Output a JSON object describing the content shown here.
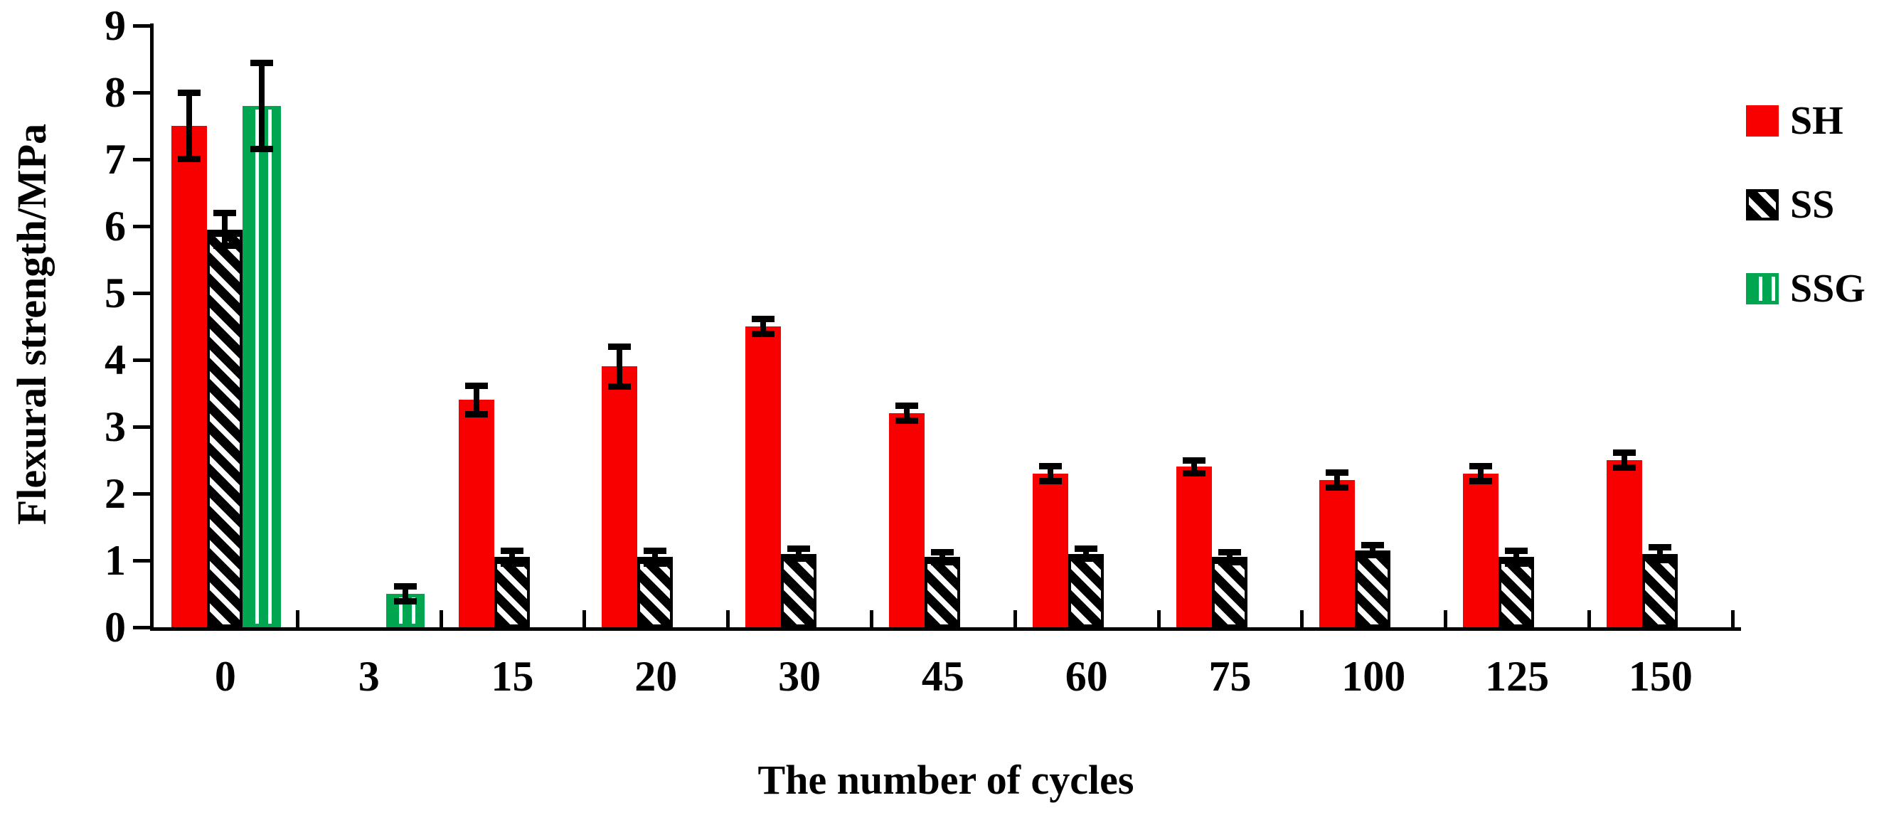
{
  "chart_data": {
    "type": "bar",
    "title": "",
    "xlabel": "The number of cycles",
    "ylabel": "Flexural strength/MPa",
    "categories": [
      "0",
      "3",
      "15",
      "20",
      "30",
      "45",
      "60",
      "75",
      "100",
      "125",
      "150"
    ],
    "y_ticks": [
      0,
      1,
      2,
      3,
      4,
      5,
      6,
      7,
      8,
      9
    ],
    "ylim": [
      0,
      9
    ],
    "grid": false,
    "legend_position": "right",
    "error_bars": true,
    "series": [
      {
        "name": "SH",
        "color": "#f80000",
        "pattern": "solid",
        "values": [
          7.5,
          null,
          3.4,
          3.9,
          4.5,
          3.2,
          2.3,
          2.4,
          2.2,
          2.3,
          2.5
        ],
        "errors": [
          0.5,
          null,
          0.22,
          0.3,
          0.12,
          0.12,
          0.12,
          0.1,
          0.12,
          0.12,
          0.12
        ]
      },
      {
        "name": "SS",
        "color": "#000000",
        "pattern": "diagonal-hatch",
        "values": [
          5.95,
          null,
          1.05,
          1.05,
          1.1,
          1.05,
          1.1,
          1.05,
          1.15,
          1.05,
          1.1
        ],
        "errors": [
          0.25,
          null,
          0.1,
          0.1,
          0.08,
          0.08,
          0.08,
          0.08,
          0.08,
          0.1,
          0.1
        ]
      },
      {
        "name": "SSG",
        "color": "#00a64f",
        "pattern": "vertical-stripes",
        "values": [
          7.8,
          0.5,
          null,
          null,
          null,
          null,
          null,
          null,
          null,
          null,
          null
        ],
        "errors": [
          0.65,
          0.12,
          null,
          null,
          null,
          null,
          null,
          null,
          null,
          null,
          null
        ]
      }
    ]
  }
}
